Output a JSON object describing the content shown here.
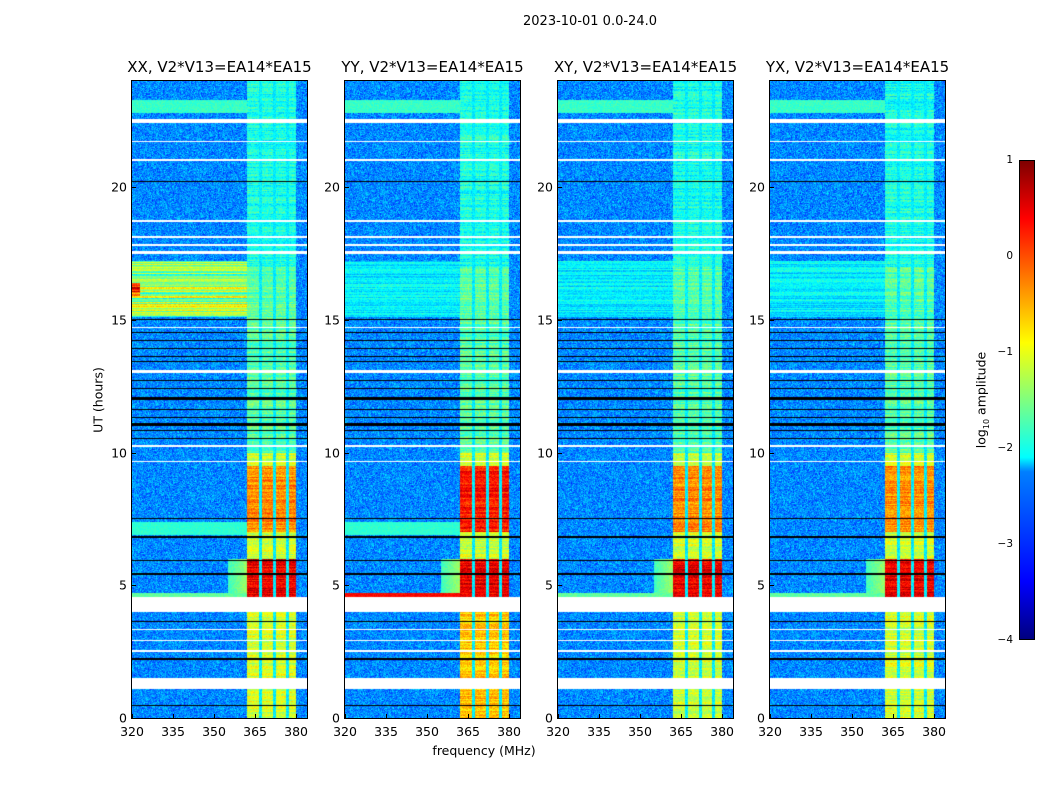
{
  "chart_data": {
    "type": "heatmap",
    "title": "2023-10-01 0.0-24.0",
    "xlabel": "frequency (MHz)",
    "ylabel": "UT (hours)",
    "xlim": [
      320,
      384
    ],
    "ylim": [
      0,
      24
    ],
    "xticks": [
      "320",
      "335",
      "350",
      "365",
      "380"
    ],
    "xtick_values": [
      320,
      335,
      350,
      365,
      380
    ],
    "yticks": [
      "0",
      "5",
      "10",
      "15",
      "20"
    ],
    "ytick_values": [
      0,
      5,
      10,
      15,
      20
    ],
    "panels": [
      {
        "title": "XX, V2*V13=EA14*EA15",
        "pol": "XX"
      },
      {
        "title": "YY, V2*V13=EA14*EA15",
        "pol": "YY"
      },
      {
        "title": "XY, V2*V13=EA14*EA15",
        "pol": "XY"
      },
      {
        "title": "YX, V2*V13=EA14*EA15",
        "pol": "YX"
      }
    ],
    "colorbar": {
      "label_main": "log",
      "label_sub": "10",
      "label_rest": " amplitude",
      "vmin": -4,
      "vmax": 1,
      "ticks": [
        "1",
        "0",
        "−1",
        "−2",
        "−3",
        "−4"
      ],
      "tick_values": [
        1,
        0,
        -1,
        -2,
        -3,
        -4
      ],
      "colormap": "jet"
    },
    "features": {
      "background_log_amp": -2.7,
      "rfi_band_mhz": [
        362,
        380
      ],
      "band_subchannel_edges_mhz": [
        367,
        372,
        377
      ],
      "strong_rfi_hours": [
        [
          4.3,
          6.0
        ],
        [
          7.0,
          9.5
        ]
      ],
      "blank_rows_hours": [
        [
          1.1,
          1.5
        ],
        [
          2.5,
          2.55
        ],
        [
          2.9,
          2.95
        ],
        [
          3.3,
          3.35
        ],
        [
          4.0,
          4.55
        ],
        [
          9.65,
          9.7
        ],
        [
          10.2,
          10.3
        ],
        [
          13.0,
          13.1
        ],
        [
          14.7,
          14.75
        ],
        [
          17.5,
          17.6
        ],
        [
          17.8,
          17.85
        ],
        [
          18.1,
          18.15
        ],
        [
          18.7,
          18.75
        ],
        [
          21.0,
          21.05
        ],
        [
          21.7,
          21.75
        ],
        [
          22.4,
          22.55
        ]
      ],
      "black_rows_hours": [
        [
          0.45,
          0.5
        ],
        [
          1.2,
          1.25
        ],
        [
          2.2,
          2.25
        ],
        [
          3.6,
          3.65
        ],
        [
          5.4,
          5.45
        ],
        [
          5.9,
          5.95
        ],
        [
          6.8,
          6.85
        ],
        [
          7.5,
          7.55
        ],
        [
          10.5,
          10.55
        ],
        [
          10.8,
          10.85
        ],
        [
          11.0,
          11.1
        ],
        [
          11.3,
          11.35
        ],
        [
          11.6,
          11.65
        ],
        [
          12.0,
          12.1
        ],
        [
          12.4,
          12.45
        ],
        [
          12.7,
          12.75
        ],
        [
          13.4,
          13.45
        ],
        [
          13.6,
          13.65
        ],
        [
          13.9,
          13.95
        ],
        [
          14.2,
          14.25
        ],
        [
          14.5,
          14.55
        ],
        [
          15.0,
          15.05
        ],
        [
          20.2,
          20.25
        ]
      ]
    }
  }
}
